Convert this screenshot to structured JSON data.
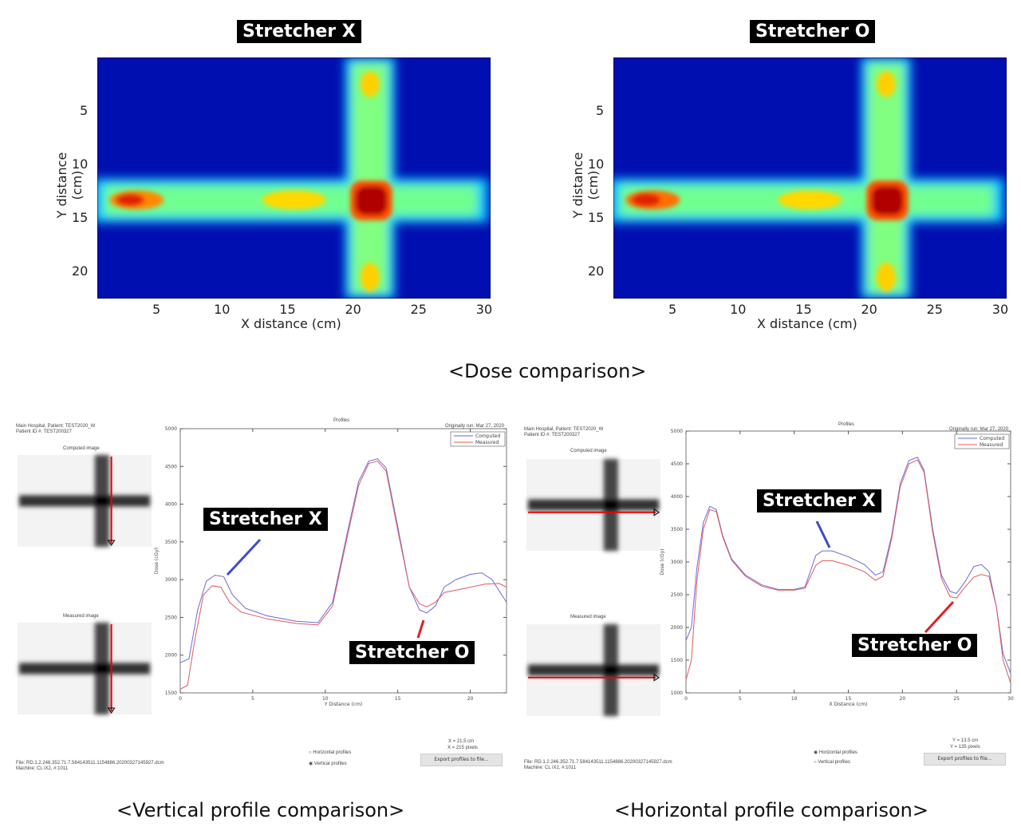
{
  "captions": {
    "dose": "<Dose comparison>",
    "vertical": "<Vertical profile comparison>",
    "horizontal": "<Horizontal profile comparison>"
  },
  "heatmaps": [
    {
      "title": "Stretcher X",
      "xlabel": "X distance (cm)",
      "ylabel": "Y distance (cm)",
      "xticks": [
        "5",
        "10",
        "15",
        "20",
        "25",
        "30"
      ],
      "yticks": [
        "5",
        "10",
        "15",
        "20"
      ]
    },
    {
      "title": "Stretcher O",
      "xlabel": "X distance (cm)",
      "ylabel": "Y distance (cm)",
      "xticks": [
        "5",
        "10",
        "15",
        "20",
        "25",
        "30"
      ],
      "yticks": [
        "5",
        "10",
        "15",
        "20"
      ]
    }
  ],
  "panels": [
    {
      "header1": "Main Hospital, Patient: TEST2020_W",
      "header2": "Patient ID #: TEST200327",
      "computed_label": "Computed image",
      "measured_label": "Measured image",
      "title": "Profiles",
      "orig": "Originally run: Mar 27, 2020",
      "file": "File: RD.1.2.246.352.71.7.584143511.1154886.20200327145927.dcm",
      "machine": "Machine: CL iX2, #:1011",
      "radio_h": "Horizontal profiles",
      "radio_v": "Vertical profiles",
      "selected": "vertical",
      "pos1": "X = 21.5 cm",
      "pos2": "X = 215 pixels",
      "export": "Export profiles to file...",
      "annot_x": "Stretcher X",
      "annot_o": "Stretcher O"
    },
    {
      "header1": "Main Hospital, Patient: TEST2020_W",
      "header2": "Patient ID #: TEST200327",
      "computed_label": "Computed image",
      "measured_label": "Measured image",
      "title": "Profiles",
      "orig": "Originally run: Mar 27, 2020",
      "file": "File: RD.1.2.246.352.71.7.584143511.1154886.20200327145927.dcm",
      "machine": "Machine: CL iX2, #:1011",
      "radio_h": "Horizontal profiles",
      "radio_v": "Vertical profiles",
      "selected": "horizontal",
      "pos1": "Y = 13.5 cm",
      "pos2": "Y = 135 pixels",
      "export": "Export profiles to file...",
      "annot_x": "Stretcher X",
      "annot_o": "Stretcher O"
    }
  ],
  "chart_data": [
    {
      "type": "line",
      "title": "Profiles",
      "xlabel": "Y Distance (cm)",
      "ylabel": "Dose (cGy)",
      "xlim": [
        0,
        22.5
      ],
      "ylim": [
        1500,
        5000
      ],
      "xticks": [
        0,
        5,
        10,
        15,
        20
      ],
      "yticks": [
        1500,
        2000,
        2500,
        3000,
        3500,
        4000,
        4500,
        5000
      ],
      "legend": "top-right",
      "colors": {
        "Computed": "#6a6ad8",
        "Measured": "#e05a5a"
      },
      "series": [
        {
          "name": "Computed",
          "x": [
            0,
            0.6,
            1.2,
            1.8,
            2.4,
            3,
            3.6,
            4.5,
            6,
            8,
            9.5,
            10.5,
            11.5,
            12.3,
            13,
            13.6,
            14.2,
            15,
            15.8,
            16.5,
            17,
            17.6,
            18.2,
            19,
            20,
            20.8,
            21.5,
            22.5
          ],
          "y": [
            1900,
            1950,
            2600,
            2980,
            3060,
            3040,
            2800,
            2620,
            2520,
            2450,
            2430,
            2700,
            3600,
            4300,
            4570,
            4600,
            4480,
            3700,
            2900,
            2600,
            2560,
            2650,
            2900,
            3000,
            3070,
            3090,
            3000,
            2700
          ]
        },
        {
          "name": "Measured",
          "x": [
            0,
            0.5,
            1,
            1.6,
            2.2,
            2.8,
            3.4,
            4.2,
            6,
            8,
            9.5,
            10.5,
            11.5,
            12.3,
            13,
            13.6,
            14.2,
            15,
            15.8,
            16.5,
            17,
            17.6,
            18.2,
            19,
            20,
            21,
            22,
            22.5
          ],
          "y": [
            1550,
            1600,
            2200,
            2800,
            2920,
            2900,
            2700,
            2570,
            2480,
            2420,
            2400,
            2650,
            3550,
            4250,
            4540,
            4570,
            4440,
            3650,
            2900,
            2680,
            2640,
            2700,
            2830,
            2860,
            2900,
            2940,
            2950,
            2900
          ]
        }
      ]
    },
    {
      "type": "line",
      "title": "Profiles",
      "xlabel": "X Distance (cm)",
      "ylabel": "Dose (cGy)",
      "xlim": [
        0,
        30
      ],
      "ylim": [
        1000,
        5000
      ],
      "xticks": [
        0,
        5,
        10,
        15,
        20,
        25,
        30
      ],
      "yticks": [
        1000,
        1500,
        2000,
        2500,
        3000,
        3500,
        4000,
        4500,
        5000
      ],
      "legend": "top-right",
      "colors": {
        "Computed": "#6a6ad8",
        "Measured": "#e05a5a"
      },
      "series": [
        {
          "name": "Computed",
          "x": [
            0,
            0.5,
            1,
            1.6,
            2.2,
            2.8,
            3.4,
            4.2,
            5.5,
            7,
            8.5,
            10,
            11,
            12,
            12.6,
            13.5,
            15,
            16.5,
            17.5,
            18.2,
            19,
            19.8,
            20.6,
            21.4,
            22,
            22.8,
            23.6,
            24.4,
            25,
            25.8,
            26.6,
            27.3,
            28,
            28.7,
            29.3,
            30
          ],
          "y": [
            1800,
            2000,
            2900,
            3600,
            3850,
            3800,
            3400,
            3050,
            2800,
            2650,
            2580,
            2580,
            2620,
            3100,
            3170,
            3170,
            3080,
            2960,
            2800,
            2850,
            3400,
            4200,
            4550,
            4600,
            4400,
            3500,
            2800,
            2550,
            2520,
            2700,
            2930,
            2960,
            2850,
            2300,
            1600,
            1300
          ]
        },
        {
          "name": "Measured",
          "x": [
            0,
            0.5,
            1,
            1.6,
            2.2,
            2.8,
            3.4,
            4.2,
            5.5,
            7,
            8.5,
            10,
            11,
            12,
            12.6,
            13.5,
            15,
            16.5,
            17.5,
            18.2,
            19,
            19.8,
            20.6,
            21.4,
            22,
            22.8,
            23.6,
            24.4,
            25,
            25.8,
            26.6,
            27.3,
            28,
            28.7,
            29.3,
            30
          ],
          "y": [
            1200,
            1500,
            2700,
            3500,
            3800,
            3770,
            3380,
            3030,
            2780,
            2630,
            2570,
            2570,
            2600,
            2950,
            3020,
            3020,
            2950,
            2850,
            2720,
            2780,
            3350,
            4150,
            4500,
            4560,
            4370,
            3450,
            2750,
            2470,
            2450,
            2620,
            2770,
            2810,
            2780,
            2300,
            1500,
            1150
          ]
        }
      ]
    }
  ]
}
